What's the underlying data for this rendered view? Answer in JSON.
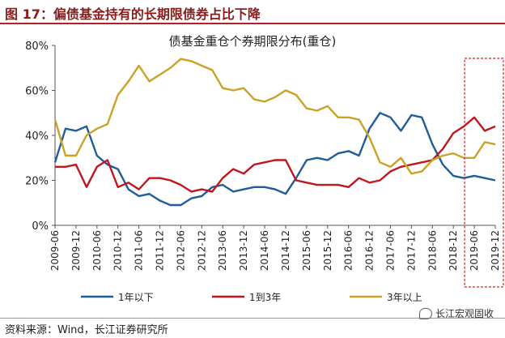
{
  "figure": {
    "title": "图 17：偏债基金持有的长期限债券占比下降",
    "source": "资料来源：Wind，长江证券研究所",
    "brand": "长江宏观固收"
  },
  "chart_data": {
    "type": "line",
    "title": "债基金重仓个券期限分布(重仓)",
    "xlabel": "",
    "ylabel": "",
    "ylim": [
      0,
      80
    ],
    "yticks": [
      "0%",
      "20%",
      "40%",
      "60%",
      "80%"
    ],
    "tick_labels": [
      "2009-06",
      "2009-12",
      "2010-06",
      "2010-12",
      "2011-06",
      "2011-12",
      "2012-06",
      "2012-12",
      "2013-06",
      "2013-12",
      "2014-06",
      "2014-12",
      "2015-06",
      "2015-12",
      "2016-06",
      "2016-12",
      "2017-06",
      "2017-12",
      "2018-06",
      "2018-12",
      "2019-06",
      "2019-12"
    ],
    "x": [
      "2009-06",
      "2009-09",
      "2009-12",
      "2010-03",
      "2010-06",
      "2010-09",
      "2010-12",
      "2011-03",
      "2011-06",
      "2011-09",
      "2011-12",
      "2012-03",
      "2012-06",
      "2012-09",
      "2012-12",
      "2013-03",
      "2013-06",
      "2013-09",
      "2013-12",
      "2014-03",
      "2014-06",
      "2014-09",
      "2014-12",
      "2015-03",
      "2015-06",
      "2015-09",
      "2015-12",
      "2016-03",
      "2016-06",
      "2016-09",
      "2016-12",
      "2017-03",
      "2017-06",
      "2017-09",
      "2017-12",
      "2018-03",
      "2018-06",
      "2018-09",
      "2018-12",
      "2019-03",
      "2019-06",
      "2019-09",
      "2019-12"
    ],
    "series": [
      {
        "name": "1年以下",
        "color": "#1F5C99",
        "values": [
          28,
          43,
          42,
          44,
          31,
          27,
          25,
          16,
          13,
          14,
          11,
          9,
          9,
          12,
          13,
          17,
          18,
          15,
          16,
          17,
          17,
          16,
          14,
          21,
          29,
          30,
          29,
          32,
          33,
          31,
          43,
          50,
          48,
          42,
          49,
          48,
          36,
          27,
          22,
          21,
          22,
          21,
          20
        ]
      },
      {
        "name": "1到3年",
        "color": "#C0161E",
        "values": [
          26,
          26,
          27,
          17,
          26,
          29,
          17,
          19,
          16,
          21,
          21,
          20,
          18,
          15,
          16,
          15,
          21,
          25,
          23,
          27,
          28,
          29,
          29,
          20,
          19,
          18,
          18,
          18,
          17,
          21,
          19,
          20,
          24,
          26,
          27,
          28,
          29,
          34,
          41,
          44,
          48,
          42,
          44
        ]
      },
      {
        "name": "3年以上",
        "color": "#C9A227",
        "values": [
          47,
          31,
          31,
          40,
          43,
          45,
          58,
          64,
          71,
          64,
          67,
          70,
          74,
          73,
          71,
          69,
          61,
          60,
          61,
          56,
          55,
          57,
          60,
          58,
          52,
          51,
          53,
          48,
          48,
          47,
          39,
          28,
          26,
          30,
          23,
          24,
          29,
          31,
          32,
          30,
          30,
          37,
          36
        ]
      }
    ],
    "legend": "bottom",
    "highlight": {
      "from": "2019-06",
      "to": "2019-12",
      "style": "red dashed box"
    },
    "grid": false
  }
}
